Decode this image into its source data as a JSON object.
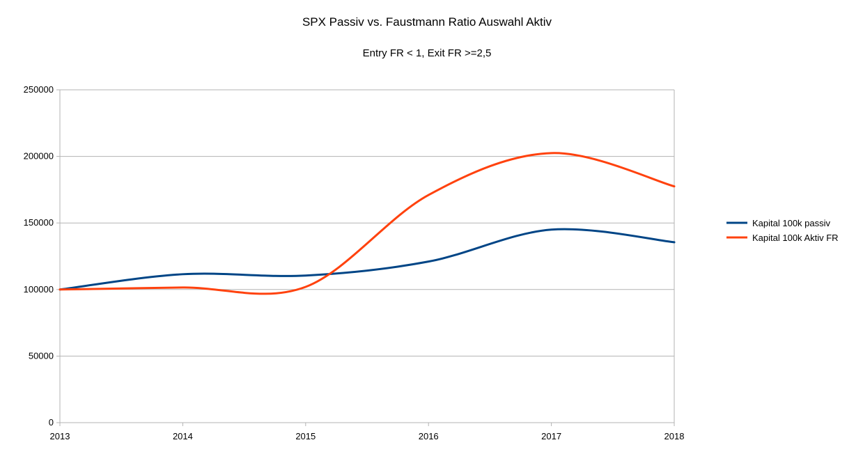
{
  "chart_data": {
    "type": "line",
    "title": "SPX Passiv vs. Faustmann Ratio Auswahl Aktiv",
    "subtitle": "Entry FR < 1, Exit FR >=2,5",
    "xlabel": "",
    "ylabel": "",
    "categories": [
      "2013",
      "2014",
      "2015",
      "2016",
      "2017",
      "2018"
    ],
    "ylim": [
      0,
      250000
    ],
    "yticks": [
      "0",
      "50000",
      "100000",
      "150000",
      "200000",
      "250000"
    ],
    "grid": "horizontal",
    "smooth": true,
    "legend_position": "right",
    "series": [
      {
        "name": "Kapital 100k passiv",
        "color": "#004586",
        "values": [
          100000,
          111500,
          110500,
          121000,
          145000,
          135500
        ]
      },
      {
        "name": "Kapital 100k Aktiv FR",
        "color": "#ff420e",
        "values": [
          100000,
          101500,
          102000,
          171000,
          202500,
          177500
        ]
      }
    ]
  }
}
